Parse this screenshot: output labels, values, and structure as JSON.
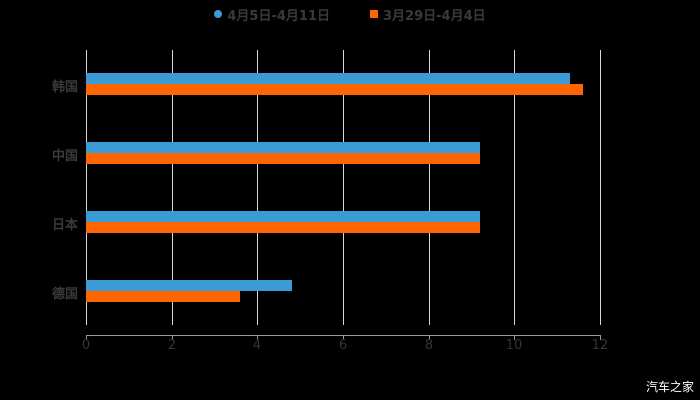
{
  "chart_data": {
    "type": "bar",
    "orientation": "horizontal",
    "title": "",
    "categories": [
      "韩国",
      "中国",
      "日本",
      "德国"
    ],
    "series": [
      {
        "name": "4月5日-4月11日",
        "color": "#3a9bd5",
        "values": [
          11.3,
          9.2,
          9.2,
          4.8
        ]
      },
      {
        "name": "3月29日-4月4日",
        "color": "#ff6600",
        "values": [
          11.6,
          9.2,
          9.2,
          3.6
        ]
      }
    ],
    "xlabel": "",
    "ylabel": "",
    "xlim": [
      0,
      12
    ],
    "xticks": [
      "0",
      "2",
      "4",
      "6",
      "8",
      "10",
      "12"
    ],
    "grid": true,
    "legend_position": "top"
  },
  "legend": {
    "items": [
      {
        "label": "4月5日-4月11日",
        "color": "#3a9bd5"
      },
      {
        "label": "3月29日-4月4日",
        "color": "#ff6600"
      }
    ]
  },
  "watermark": "汽车之家"
}
